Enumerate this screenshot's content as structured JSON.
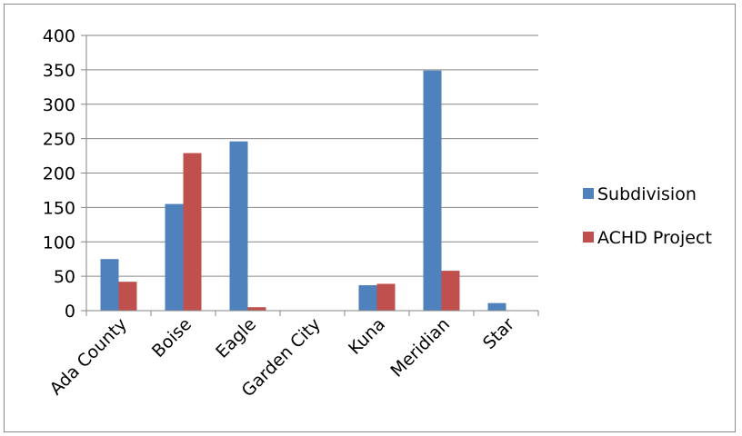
{
  "chart_data": {
    "type": "bar",
    "title": "",
    "xlabel": "",
    "ylabel": "",
    "categories": [
      "Ada County",
      "Boise",
      "Eagle",
      "Garden City",
      "Kuna",
      "Meridian",
      "Star"
    ],
    "series": [
      {
        "name": "Subdivision",
        "color": "#4f81bd",
        "values": [
          75,
          155,
          246,
          0,
          37,
          349,
          11
        ]
      },
      {
        "name": "ACHD Project",
        "color": "#c0504d",
        "values": [
          42,
          229,
          5,
          0,
          39,
          58,
          0
        ]
      }
    ],
    "ylim": [
      0,
      400
    ],
    "yticks": [
      0,
      50,
      100,
      150,
      200,
      250,
      300,
      350,
      400
    ],
    "grid": true,
    "legend_position": "right"
  }
}
